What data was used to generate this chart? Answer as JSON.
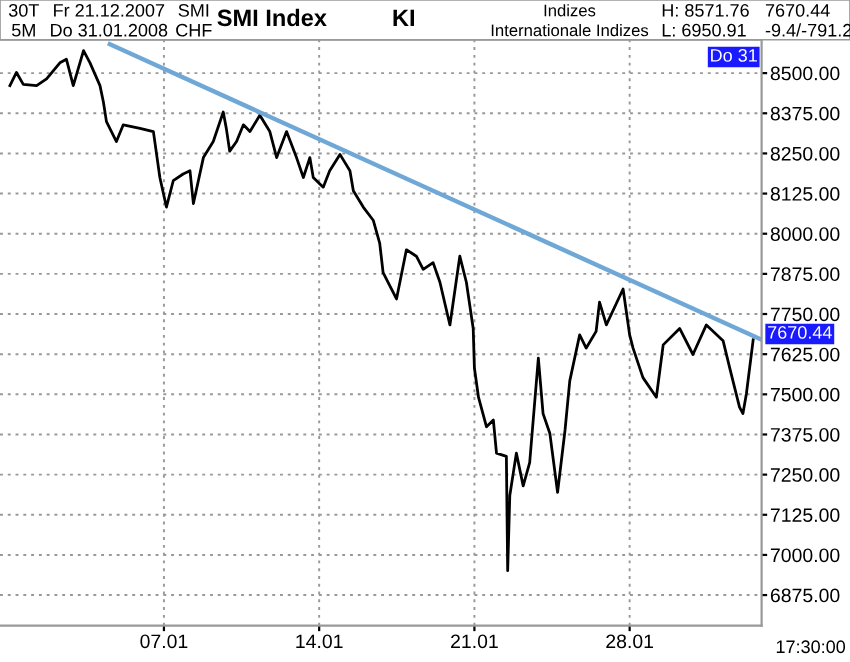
{
  "chart_data": {
    "type": "line",
    "title": "SMI Index",
    "annotations": [
      "30T",
      "5M",
      "Fr 21.12.2007",
      "Do 31.01.2008",
      "SMI",
      "CHF",
      "KI",
      "Indizes",
      "Internationale Indizes",
      "H: 8571.76",
      "L: 6950.91",
      "7670.44",
      "-9.4/-791.2",
      "Do 31",
      {
        "text": "7670.44",
        "x": "2008-02-02T22:48",
        "y": 7670.44
      },
      "17:30:00"
    ],
    "series": [
      {
        "color": "#000000",
        "x": [
          "2007-12-31T01:20",
          "2007-12-31T08:24",
          "2007-12-31T15:48",
          "2008-01-01T06:12",
          "2008-01-01T17:00",
          "2008-01-02T07:24",
          "2008-01-02T14:30",
          "2008-01-02T21:54",
          "2008-01-03T09:00",
          "2008-01-03T16:00",
          "2008-01-04T02:48",
          "2008-01-04T06:30",
          "2008-01-04T09:48",
          "2008-01-04T20:36",
          "2008-01-05T04:00",
          "2008-01-05T22:06",
          "2008-01-06T12:36",
          "2008-01-06T19:36",
          "2008-01-07T02:42",
          "2008-01-07T10:06",
          "2008-01-07T20:48",
          "2008-01-08T04:12",
          "2008-01-08T07:54",
          "2008-01-08T18:42",
          "2008-01-09T05:24",
          "2008-01-09T16:12",
          "2008-01-09T19:30",
          "2008-01-09T23:12",
          "2008-01-10T06:36",
          "2008-01-10T14:00",
          "2008-01-10T21:06",
          "2008-01-11T07:48",
          "2008-01-11T18:36",
          "2008-01-12T02:00",
          "2008-01-12T12:42",
          "2008-01-12T23:30",
          "2008-01-13T06:54",
          "2008-01-13T13:54",
          "2008-01-13T17:36",
          "2008-01-14T04:24",
          "2008-01-14T11:24",
          "2008-01-14T22:30",
          "2008-01-15T09:18",
          "2008-01-15T13:00",
          "2008-01-15T23:42",
          "2008-01-16T10:30",
          "2008-01-16T17:30",
          "2008-01-16T21:12",
          "2008-01-17T11:42",
          "2008-01-17T22:24",
          "2008-01-18T09:12",
          "2008-01-18T16:36",
          "2008-01-19T03:18",
          "2008-01-19T10:42",
          "2008-01-19T21:30",
          "2008-01-20T08:12",
          "2008-01-20T15:18",
          "2008-01-20T22:42",
          "2008-01-21T00:00",
          "2008-01-21T04:24",
          "2008-01-21T13:06",
          "2008-01-21T20:30",
          "2008-01-21T23:54",
          "2008-01-22T10:36",
          "2008-01-22T12:00",
          "2008-01-22T14:18",
          "2008-01-22T21:24",
          "2008-01-23T04:48",
          "2008-01-23T11:48",
          "2008-01-23T21:12",
          "2008-01-24T02:18",
          "2008-01-24T09:36",
          "2008-01-24T18:00",
          "2008-01-25T02:06",
          "2008-01-25T07:12",
          "2008-01-25T17:54",
          "2008-01-26T01:00",
          "2008-01-26T11:42",
          "2008-01-26T15:24",
          "2008-01-26T22:48",
          "2008-01-27T16:54",
          "2008-01-28T00:00",
          "2008-01-28T03:42",
          "2008-01-28T14:24",
          "2008-01-29T04:54",
          "2008-01-29T12:18",
          "2008-01-30T06:06",
          "2008-01-30T20:30",
          "2008-01-31T11:00",
          "2008-02-01T05:06",
          "2008-02-01T12:12",
          "2008-02-01T22:54",
          "2008-02-02T02:36",
          "2008-02-02T06:18",
          "2008-02-02T13:42"
        ],
        "values": [
          8461,
          8502,
          8465,
          8461,
          8482,
          8532,
          8543,
          8461,
          8570,
          8532,
          8461,
          8410,
          8349,
          8287,
          8339,
          8328,
          8318,
          8175,
          8083,
          8165,
          8186,
          8196,
          8094,
          8237,
          8287,
          8379,
          8328,
          8257,
          8287,
          8339,
          8318,
          8369,
          8318,
          8237,
          8318,
          8237,
          8175,
          8237,
          8175,
          8145,
          8196,
          8247,
          8196,
          8134,
          8083,
          8042,
          7971,
          7879,
          7797,
          7950,
          7930,
          7889,
          7910,
          7849,
          7716,
          7930,
          7849,
          7705,
          7582,
          7491,
          7399,
          7420,
          7317,
          7307,
          6951,
          7185,
          7317,
          7215,
          7287,
          7613,
          7440,
          7379,
          7195,
          7389,
          7542,
          7685,
          7644,
          7696,
          7787,
          7716,
          7828,
          7685,
          7644,
          7552,
          7491,
          7654,
          7705,
          7624,
          7716,
          7667,
          7583,
          7460,
          7440,
          7501,
          7670
        ]
      },
      {
        "type": "line",
        "color": "#6fa8d6",
        "x": [
          "2008-01-04T13:30",
          "2008-02-02T22:48"
        ],
        "values": [
          8590,
          7670
        ]
      }
    ],
    "xlim": [
      "2007-12-30T14:36",
      "2008-02-02T22:48"
    ],
    "ylim": [
      6780,
      8604
    ],
    "xticks": [
      {
        "value": "2008-01-07",
        "label": "07.01"
      },
      {
        "value": "2008-01-14",
        "label": "14.01"
      },
      {
        "value": "2008-01-21",
        "label": "21.01"
      },
      {
        "value": "2008-01-28",
        "label": "28.01"
      }
    ],
    "yticks": [
      {
        "value": 6875,
        "label": "6875.00"
      },
      {
        "value": 7000,
        "label": "7000.00"
      },
      {
        "value": 7125,
        "label": "7125.00"
      },
      {
        "value": 7250,
        "label": "7250.00"
      },
      {
        "value": 7375,
        "label": "7375.00"
      },
      {
        "value": 7500,
        "label": "7500.00"
      },
      {
        "value": 7625,
        "label": "7625.00"
      },
      {
        "value": 7750,
        "label": "7750.00"
      },
      {
        "value": 7875,
        "label": "7875.00"
      },
      {
        "value": 8000,
        "label": "8000.00"
      },
      {
        "value": 8125,
        "label": "8125.00"
      },
      {
        "value": 8250,
        "label": "8250.00"
      },
      {
        "value": 8375,
        "label": "8375.00"
      },
      {
        "value": 8500,
        "label": "8500.00"
      }
    ],
    "grid": true,
    "legend": false,
    "marker": "none",
    "line_style": "solid"
  }
}
